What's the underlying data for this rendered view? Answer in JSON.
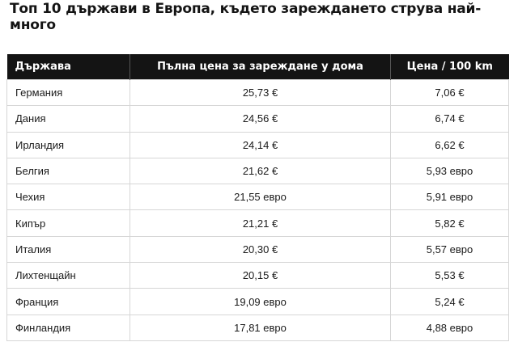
{
  "title": "Топ 10 държави в Европа, където зареждането струва най-много",
  "table": {
    "headers": [
      "Държава",
      "Пълна цена за зареждане у дома",
      "Цена / 100 km"
    ],
    "rows": [
      [
        "Германия",
        "25,73 €",
        "7,06 €"
      ],
      [
        "Дания",
        "24,56 €",
        "6,74 €"
      ],
      [
        "Ирландия",
        "24,14 €",
        "6,62 €"
      ],
      [
        "Белгия",
        "21,62 €",
        "5,93 евро"
      ],
      [
        "Чехия",
        "21,55 евро",
        "5,91 евро"
      ],
      [
        "Кипър",
        "21,21 €",
        "5,82 €"
      ],
      [
        "Италия",
        "20,30 €",
        "5,57 евро"
      ],
      [
        "Лихтенщайн",
        "20,15 €",
        "5,53 €"
      ],
      [
        "Франция",
        "19,09 евро",
        "5,24 €"
      ],
      [
        "Финландия",
        "17,81 евро",
        "4,88 евро"
      ]
    ]
  }
}
